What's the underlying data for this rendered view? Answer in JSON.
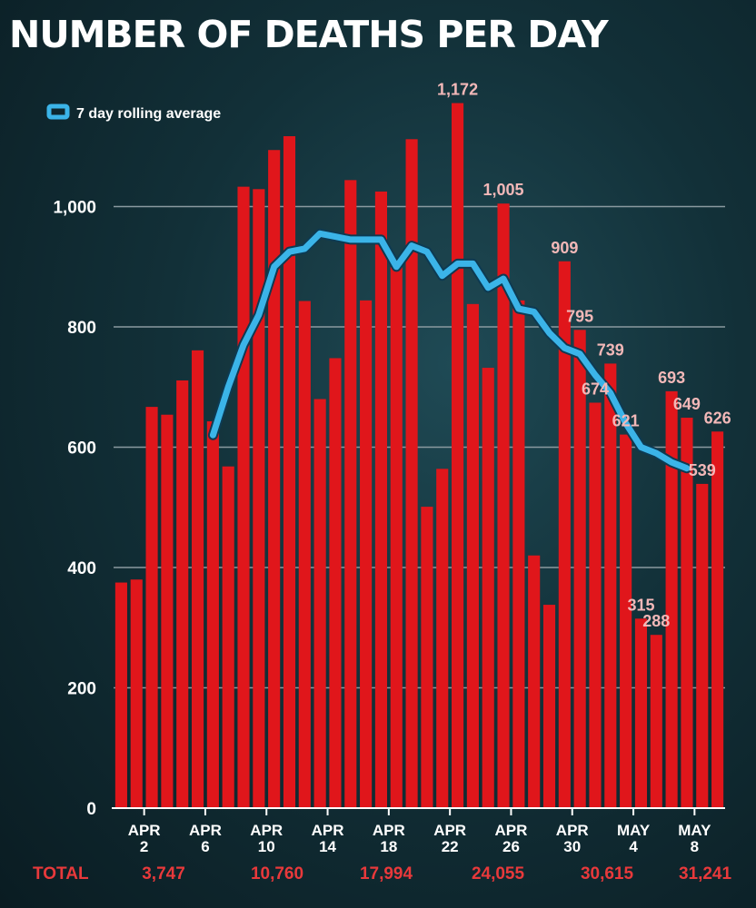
{
  "colors": {
    "bar": "#e0161b",
    "line": "#3bb4e8",
    "grid": "#8a9aa0",
    "label": "#f2b8b8",
    "total": "#e8393b"
  },
  "totals": {
    "label": "TOTAL",
    "values": [
      "3,747",
      "10,760",
      "17,994",
      "24,055",
      "30,615",
      "31,241"
    ]
  },
  "chart_data": {
    "type": "bar",
    "title": "NUMBER OF DEATHS PER DAY",
    "xlabel": "",
    "ylabel": "",
    "ylim": [
      0,
      1200
    ],
    "yticks": [
      0,
      200,
      400,
      600,
      800,
      1000
    ],
    "grid": true,
    "legend": {
      "placement": "top-left",
      "entries": [
        "7 day rolling average"
      ]
    },
    "x_tick_labels": [
      {
        "index": 2,
        "lines": [
          "APR",
          "2"
        ]
      },
      {
        "index": 6,
        "lines": [
          "APR",
          "6"
        ]
      },
      {
        "index": 10,
        "lines": [
          "APR",
          "10"
        ]
      },
      {
        "index": 14,
        "lines": [
          "APR",
          "14"
        ]
      },
      {
        "index": 18,
        "lines": [
          "APR",
          "18"
        ]
      },
      {
        "index": 22,
        "lines": [
          "APR",
          "22"
        ]
      },
      {
        "index": 26,
        "lines": [
          "APR",
          "26"
        ]
      },
      {
        "index": 30,
        "lines": [
          "APR",
          "30"
        ]
      },
      {
        "index": 34,
        "lines": [
          "MAY",
          "4"
        ]
      },
      {
        "index": 38,
        "lines": [
          "MAY",
          "8"
        ]
      }
    ],
    "series": [
      {
        "type": "bar",
        "values": [
          375,
          380,
          667,
          654,
          711,
          761,
          643,
          568,
          1033,
          1029,
          1094,
          1117,
          843,
          680,
          748,
          1044,
          844,
          1025,
          900,
          1112,
          501,
          564,
          1172,
          838,
          732,
          1005,
          844,
          420,
          338,
          909,
          795,
          674,
          739,
          621,
          315,
          288,
          693,
          649,
          539,
          626
        ],
        "data_labels": {
          "22": "1,172",
          "25": "1,005",
          "29": "909",
          "30": "795",
          "31": "674",
          "32": "739",
          "33": "621",
          "34": "315",
          "35": "288",
          "36": "693",
          "37": "649",
          "38": "539",
          "39": "626"
        }
      },
      {
        "type": "line",
        "name": "7 day rolling average",
        "values": [
          null,
          null,
          null,
          null,
          null,
          null,
          620,
          700,
          770,
          820,
          900,
          925,
          930,
          955,
          950,
          945,
          945,
          945,
          900,
          935,
          925,
          885,
          905,
          905,
          865,
          880,
          830,
          825,
          790,
          765,
          755,
          720,
          690,
          640,
          600,
          590,
          575,
          565,
          null,
          null
        ]
      }
    ]
  }
}
